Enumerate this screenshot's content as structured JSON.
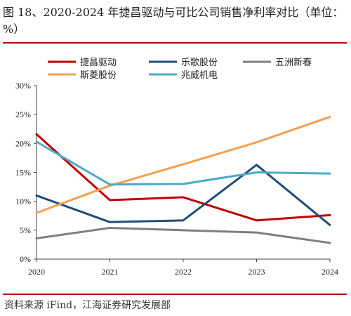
{
  "title": "图 18、2020-2024 年捷昌驱动与可比公司销售净利率对比（单位：%）",
  "source": "资料来源 iFind，江海证券研究发展部",
  "chart_data": {
    "type": "line",
    "x": [
      "2020",
      "2021",
      "2022",
      "2023",
      "2024"
    ],
    "ylim": [
      0,
      30
    ],
    "yticks": [
      "0%",
      "5%",
      "10%",
      "15%",
      "20%",
      "25%",
      "30%"
    ],
    "grid": false,
    "legend": "top",
    "series": [
      {
        "name": "捷昌驱动",
        "color": "#c00000",
        "values": [
          21.6,
          10.2,
          10.7,
          6.7,
          7.6
        ]
      },
      {
        "name": "乐歌股份",
        "color": "#1f4e79",
        "values": [
          11.0,
          6.4,
          6.7,
          16.3,
          5.9
        ]
      },
      {
        "name": "五洲新春",
        "color": "#7f7f7f",
        "values": [
          3.6,
          5.4,
          5.0,
          4.6,
          2.8
        ]
      },
      {
        "name": "斯菱股份",
        "color": "#f4a04e",
        "values": [
          8.0,
          12.7,
          16.4,
          20.2,
          24.6
        ]
      },
      {
        "name": "兆威机电",
        "color": "#4bacc6",
        "values": [
          20.3,
          12.9,
          13.0,
          15.0,
          14.8
        ]
      }
    ]
  }
}
